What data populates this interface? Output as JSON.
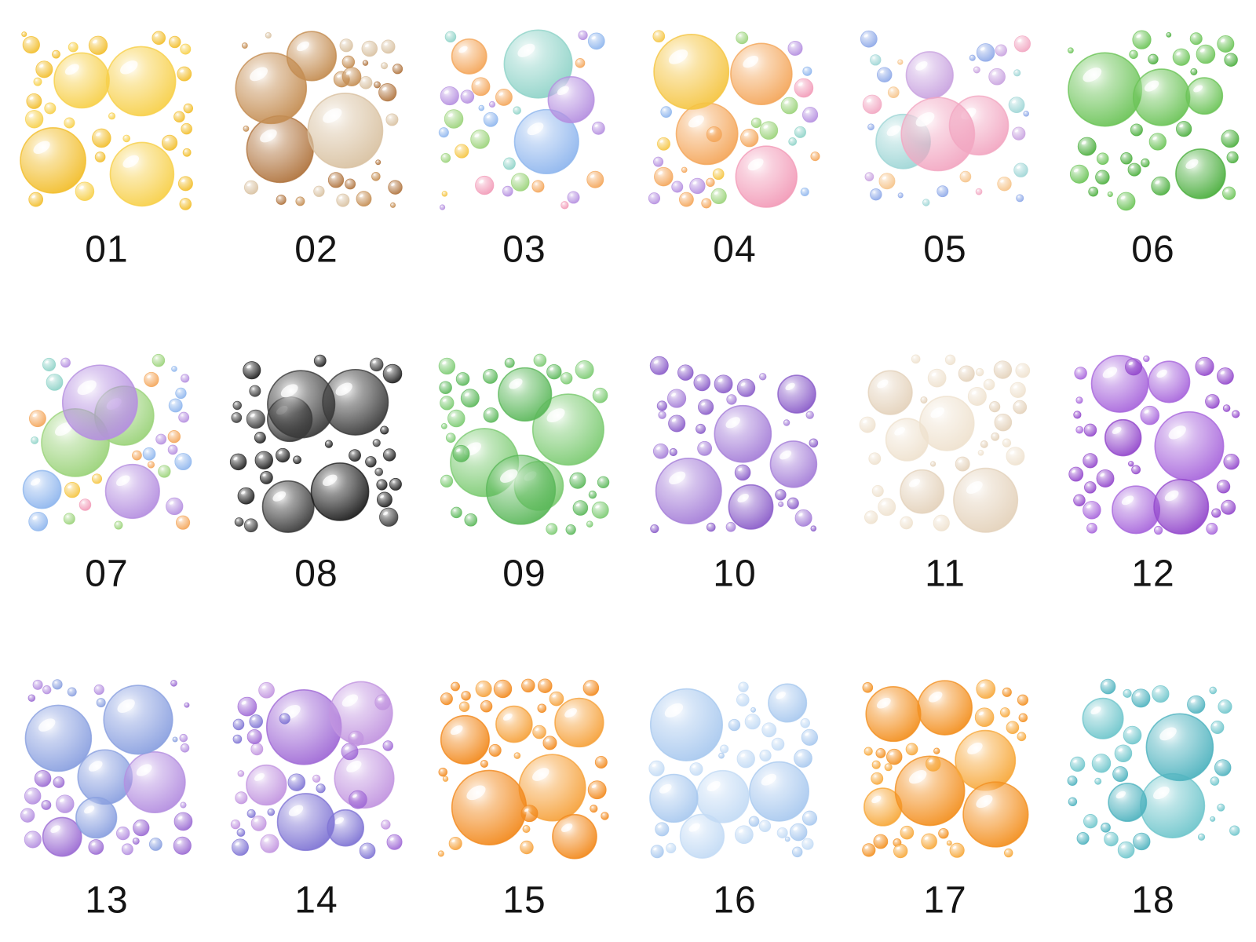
{
  "items": [
    {
      "label": "01"
    },
    {
      "label": "02"
    },
    {
      "label": "03"
    },
    {
      "label": "04"
    },
    {
      "label": "05"
    },
    {
      "label": "06"
    },
    {
      "label": "07"
    },
    {
      "label": "08"
    },
    {
      "label": "09"
    },
    {
      "label": "10"
    },
    {
      "label": "11"
    },
    {
      "label": "12"
    },
    {
      "label": "13"
    },
    {
      "label": "14"
    },
    {
      "label": "15"
    },
    {
      "label": "16"
    },
    {
      "label": "17"
    },
    {
      "label": "18"
    }
  ]
}
